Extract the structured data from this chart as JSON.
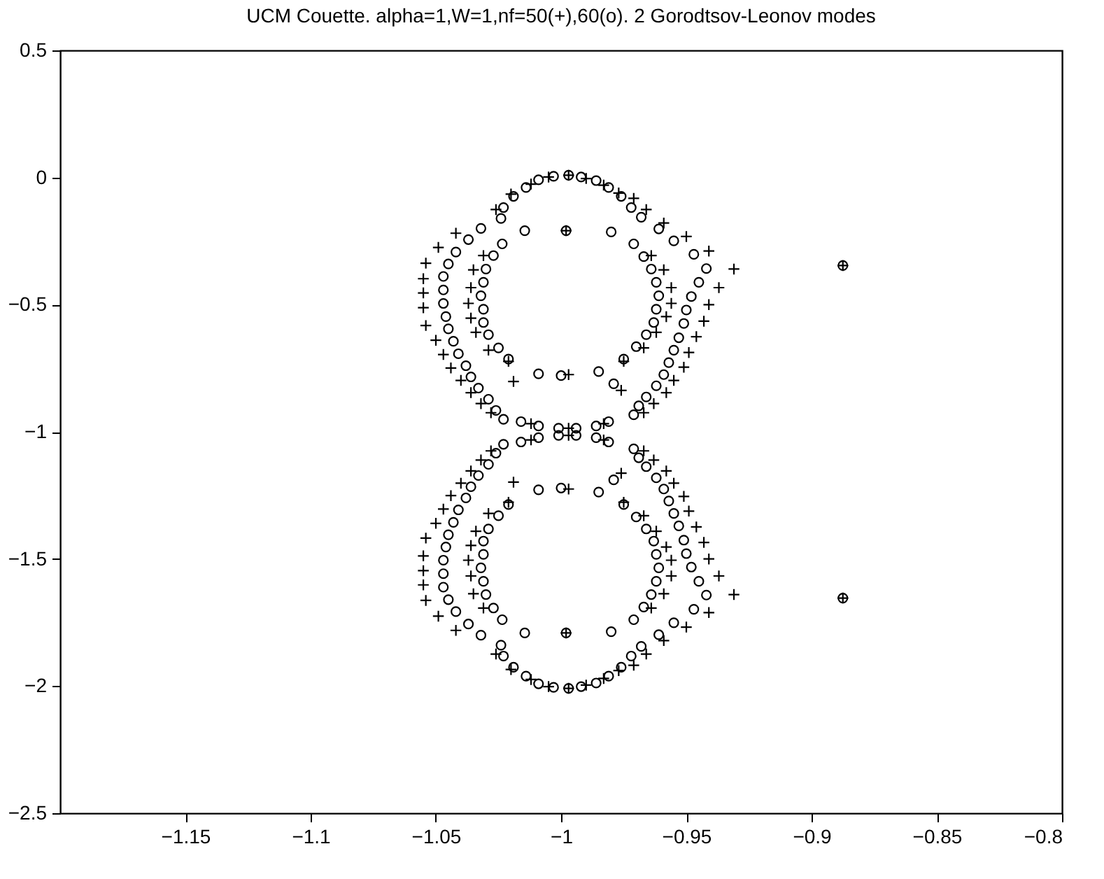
{
  "chart_data": {
    "type": "scatter",
    "title": "UCM Couette. alpha=1,W=1,nf=50(+),60(o). 2 Gorodtsov-Leonov modes",
    "xlim": [
      -1.2,
      -0.8
    ],
    "xticks": [
      -1.15,
      -1.1,
      -1.05,
      -1,
      -0.95,
      -0.9,
      -0.85,
      -0.8
    ],
    "ylim": [
      -2.5,
      0.5
    ],
    "yticks": [
      -2.5,
      -2,
      -1.5,
      -1,
      -0.5,
      0,
      0.5
    ],
    "grid": false,
    "legend": false,
    "series": [
      {
        "marker": "circle",
        "color": "#000000",
        "x": [
          -0.998,
          -0.8875,
          -1.0145,
          -0.98,
          -1.0235,
          -0.971,
          -1.027,
          -0.967,
          -1.03,
          -0.964,
          -1.031,
          -0.962,
          -1.032,
          -0.961,
          -1.031,
          -0.962,
          -1.031,
          -0.963,
          -1.029,
          -0.966,
          -1.025,
          -0.97,
          -1.021,
          -0.975,
          -1.009,
          -1.0,
          -0.985,
          -0.979,
          -1.024,
          -1.032,
          -1.037,
          -1.042,
          -1.045,
          -1.047,
          -1.047,
          -1.047,
          -1.046,
          -1.045,
          -1.043,
          -1.041,
          -1.038,
          -1.036,
          -1.033,
          -1.029,
          -1.026,
          -1.023,
          -0.968,
          -0.961,
          -0.955,
          -0.947,
          -0.942,
          -0.945,
          -0.948,
          -0.95,
          -0.951,
          -0.953,
          -0.955,
          -0.957,
          -0.959,
          -0.962,
          -0.966,
          -0.969,
          -0.971,
          -1.023,
          -1.019,
          -1.014,
          -1.009,
          -1.003,
          -0.997,
          -0.992,
          -0.986,
          -0.981,
          -0.976,
          -0.972,
          -1.016,
          -1.009,
          -1.001,
          -0.994,
          -0.986,
          -0.981,
          -0.998,
          -0.8875,
          -1.0145,
          -0.98,
          -1.0235,
          -0.971,
          -1.027,
          -0.967,
          -1.03,
          -0.964,
          -1.031,
          -0.962,
          -1.032,
          -0.961,
          -1.031,
          -0.962,
          -1.031,
          -0.963,
          -1.029,
          -0.966,
          -1.025,
          -0.97,
          -1.021,
          -0.975,
          -1.009,
          -1.0,
          -0.985,
          -0.979,
          -1.024,
          -1.032,
          -1.037,
          -1.042,
          -1.045,
          -1.047,
          -1.047,
          -1.047,
          -1.046,
          -1.045,
          -1.043,
          -1.041,
          -1.038,
          -1.036,
          -1.033,
          -1.029,
          -1.026,
          -1.023,
          -0.968,
          -0.961,
          -0.955,
          -0.947,
          -0.942,
          -0.945,
          -0.948,
          -0.95,
          -0.951,
          -0.953,
          -0.955,
          -0.957,
          -0.959,
          -0.962,
          -0.966,
          -0.969,
          -0.971,
          -1.023,
          -1.019,
          -1.014,
          -1.009,
          -1.003,
          -0.997,
          -0.992,
          -0.986,
          -0.981,
          -0.976,
          -0.972,
          -1.016,
          -1.009,
          -1.001,
          -0.994,
          -0.986,
          -0.981
        ],
        "values": [
          -0.209,
          -0.346,
          -0.209,
          -0.214,
          -0.261,
          -0.261,
          -0.307,
          -0.311,
          -0.36,
          -0.36,
          -0.412,
          -0.412,
          -0.465,
          -0.465,
          -0.518,
          -0.518,
          -0.57,
          -0.57,
          -0.618,
          -0.618,
          -0.67,
          -0.665,
          -0.714,
          -0.714,
          -0.772,
          -0.779,
          -0.763,
          -0.811,
          -0.161,
          -0.2,
          -0.244,
          -0.293,
          -0.34,
          -0.389,
          -0.442,
          -0.495,
          -0.547,
          -0.595,
          -0.644,
          -0.693,
          -0.74,
          -0.784,
          -0.828,
          -0.872,
          -0.916,
          -0.951,
          -0.156,
          -0.202,
          -0.249,
          -0.302,
          -0.358,
          -0.412,
          -0.468,
          -0.521,
          -0.574,
          -0.63,
          -0.679,
          -0.728,
          -0.775,
          -0.819,
          -0.863,
          -0.898,
          -0.933,
          -0.118,
          -0.074,
          -0.039,
          -0.009,
          0.005,
          0.009,
          0.002,
          -0.012,
          -0.039,
          -0.074,
          -0.118,
          -0.96,
          -0.977,
          -0.986,
          -0.986,
          -0.977,
          -0.96,
          -1.791,
          -1.654,
          -1.791,
          -1.786,
          -1.739,
          -1.739,
          -1.693,
          -1.689,
          -1.64,
          -1.64,
          -1.588,
          -1.588,
          -1.535,
          -1.535,
          -1.482,
          -1.482,
          -1.43,
          -1.43,
          -1.382,
          -1.382,
          -1.33,
          -1.335,
          -1.286,
          -1.286,
          -1.228,
          -1.221,
          -1.237,
          -1.189,
          -1.839,
          -1.8,
          -1.756,
          -1.707,
          -1.66,
          -1.611,
          -1.558,
          -1.505,
          -1.453,
          -1.405,
          -1.356,
          -1.307,
          -1.26,
          -1.216,
          -1.172,
          -1.128,
          -1.084,
          -1.049,
          -1.844,
          -1.798,
          -1.751,
          -1.698,
          -1.642,
          -1.588,
          -1.532,
          -1.479,
          -1.426,
          -1.37,
          -1.321,
          -1.272,
          -1.225,
          -1.181,
          -1.137,
          -1.102,
          -1.067,
          -1.882,
          -1.926,
          -1.961,
          -1.991,
          -2.005,
          -2.009,
          -2.002,
          -1.988,
          -1.961,
          -1.926,
          -1.882,
          -1.04,
          -1.023,
          -1.014,
          -1.014,
          -1.023,
          -1.04
        ]
      },
      {
        "marker": "cross",
        "color": "#000000",
        "x": [
          -0.998,
          -0.8875,
          -0.931,
          -0.937,
          -0.941,
          -0.943,
          -0.946,
          -0.949,
          -0.951,
          -0.955,
          -0.958,
          -0.963,
          -0.967,
          -0.941,
          -0.95,
          -0.959,
          -0.966,
          -0.971,
          -1.042,
          -1.049,
          -1.054,
          -1.055,
          -1.055,
          -1.055,
          -1.054,
          -1.05,
          -1.047,
          -1.044,
          -1.04,
          -1.036,
          -1.032,
          -1.028,
          -1.031,
          -1.035,
          -1.036,
          -1.037,
          -1.036,
          -1.034,
          -1.029,
          -1.021,
          -1.019,
          -0.964,
          -0.959,
          -0.956,
          -0.956,
          -0.958,
          -0.962,
          -0.967,
          -0.975,
          -0.976,
          -0.997,
          -1.026,
          -1.02,
          -1.012,
          -1.005,
          -0.997,
          -0.99,
          -0.983,
          -0.977,
          -1.012,
          -0.997,
          -0.983,
          -0.998,
          -0.8875,
          -0.931,
          -0.937,
          -0.941,
          -0.943,
          -0.946,
          -0.949,
          -0.951,
          -0.955,
          -0.958,
          -0.963,
          -0.967,
          -0.941,
          -0.95,
          -0.959,
          -0.966,
          -0.971,
          -1.042,
          -1.049,
          -1.054,
          -1.055,
          -1.055,
          -1.055,
          -1.054,
          -1.05,
          -1.047,
          -1.044,
          -1.04,
          -1.036,
          -1.032,
          -1.028,
          -1.031,
          -1.035,
          -1.036,
          -1.037,
          -1.036,
          -1.034,
          -1.029,
          -1.021,
          -1.019,
          -0.964,
          -0.959,
          -0.956,
          -0.956,
          -0.958,
          -0.962,
          -0.967,
          -0.975,
          -0.976,
          -0.997,
          -1.026,
          -1.02,
          -1.012,
          -1.005,
          -0.997,
          -0.99,
          -0.983,
          -0.977,
          -1.012,
          -0.997,
          -0.983
        ],
        "values": [
          -0.209,
          -0.346,
          -0.36,
          -0.433,
          -0.5,
          -0.565,
          -0.626,
          -0.688,
          -0.746,
          -0.798,
          -0.846,
          -0.889,
          -0.925,
          -0.289,
          -0.232,
          -0.179,
          -0.126,
          -0.082,
          -0.219,
          -0.275,
          -0.337,
          -0.398,
          -0.454,
          -0.512,
          -0.582,
          -0.64,
          -0.696,
          -0.749,
          -0.798,
          -0.846,
          -0.889,
          -0.925,
          -0.307,
          -0.363,
          -0.433,
          -0.495,
          -0.553,
          -0.609,
          -0.679,
          -0.723,
          -0.802,
          -0.307,
          -0.363,
          -0.433,
          -0.495,
          -0.547,
          -0.609,
          -0.67,
          -0.723,
          -0.837,
          -0.775,
          -0.126,
          -0.065,
          -0.026,
          0.002,
          0.009,
          -0.004,
          -0.03,
          -0.061,
          -0.968,
          -0.986,
          -0.968,
          -1.791,
          -1.654,
          -1.64,
          -1.567,
          -1.5,
          -1.435,
          -1.374,
          -1.312,
          -1.254,
          -1.202,
          -1.154,
          -1.111,
          -1.075,
          -1.711,
          -1.768,
          -1.821,
          -1.874,
          -1.918,
          -1.781,
          -1.725,
          -1.663,
          -1.602,
          -1.546,
          -1.488,
          -1.418,
          -1.36,
          -1.304,
          -1.251,
          -1.202,
          -1.154,
          -1.111,
          -1.075,
          -1.693,
          -1.637,
          -1.567,
          -1.505,
          -1.447,
          -1.391,
          -1.321,
          -1.277,
          -1.198,
          -1.693,
          -1.637,
          -1.567,
          -1.505,
          -1.453,
          -1.391,
          -1.33,
          -1.277,
          -1.163,
          -1.225,
          -1.874,
          -1.935,
          -1.974,
          -2.002,
          -2.009,
          -1.996,
          -1.97,
          -1.939,
          -1.032,
          -1.014,
          -1.032
        ]
      }
    ]
  }
}
